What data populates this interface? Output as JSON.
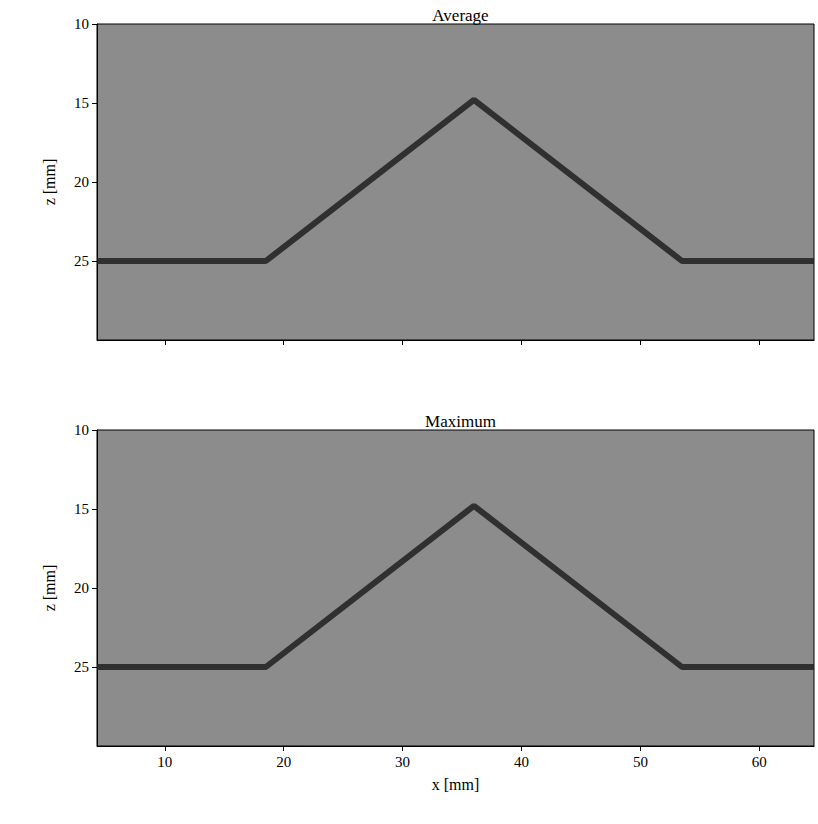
{
  "chart_data": [
    {
      "type": "line",
      "title": "Average",
      "y_label": "z [mm]",
      "xlim": [
        4.3,
        64.6
      ],
      "ylim": [
        30,
        10
      ],
      "xticks": [
        10,
        20,
        30,
        40,
        50,
        60
      ],
      "yticks": [
        10,
        15,
        20,
        25
      ],
      "tick_labels": "y",
      "series": [
        {
          "x": [
            4.3,
            18.5,
            36,
            53.5,
            64.6
          ],
          "values": [
            25,
            25,
            14.8,
            25,
            25
          ],
          "color": "#202020",
          "line_style": "solid"
        }
      ]
    },
    {
      "type": "line",
      "title": "Maximum",
      "x_label": "x [mm]",
      "y_label": "z [mm]",
      "xlim": [
        4.3,
        64.6
      ],
      "ylim": [
        30,
        10
      ],
      "xticks": [
        10,
        20,
        30,
        40,
        50,
        60
      ],
      "yticks": [
        10,
        15,
        20,
        25
      ],
      "series": [
        {
          "x": [
            4.3,
            18.5,
            36,
            53.5,
            64.6
          ],
          "values": [
            25,
            25,
            14.8,
            25,
            25
          ],
          "color": "#202020",
          "line_style": "solid"
        }
      ]
    }
  ]
}
